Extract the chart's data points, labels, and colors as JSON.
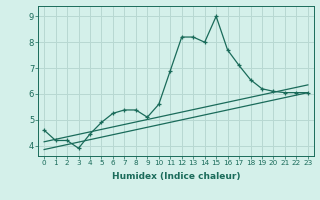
{
  "xlabel": "Humidex (Indice chaleur)",
  "bg_color": "#d4f0ea",
  "grid_color": "#b8d8d2",
  "line_color": "#1a6b5a",
  "xlim": [
    -0.5,
    23.5
  ],
  "ylim": [
    3.6,
    9.4
  ],
  "yticks": [
    4,
    5,
    6,
    7,
    8,
    9
  ],
  "xticks": [
    0,
    1,
    2,
    3,
    4,
    5,
    6,
    7,
    8,
    9,
    10,
    11,
    12,
    13,
    14,
    15,
    16,
    17,
    18,
    19,
    20,
    21,
    22,
    23
  ],
  "main_x": [
    0,
    1,
    2,
    3,
    4,
    5,
    6,
    7,
    8,
    9,
    10,
    11,
    12,
    13,
    14,
    15,
    16,
    17,
    18,
    19,
    20,
    21,
    22,
    23
  ],
  "main_y": [
    4.6,
    4.2,
    4.2,
    3.9,
    4.45,
    4.9,
    5.25,
    5.38,
    5.38,
    5.1,
    5.6,
    6.9,
    8.2,
    8.2,
    8.0,
    9.0,
    7.7,
    7.1,
    6.55,
    6.2,
    6.1,
    6.05,
    6.05,
    6.05
  ],
  "line2_x": [
    0,
    23
  ],
  "line2_y": [
    4.15,
    6.35
  ],
  "line3_x": [
    0,
    23
  ],
  "line3_y": [
    3.85,
    6.05
  ],
  "xlabel_fontsize": 6.5,
  "tick_fontsize_x": 5.2,
  "tick_fontsize_y": 6.0
}
